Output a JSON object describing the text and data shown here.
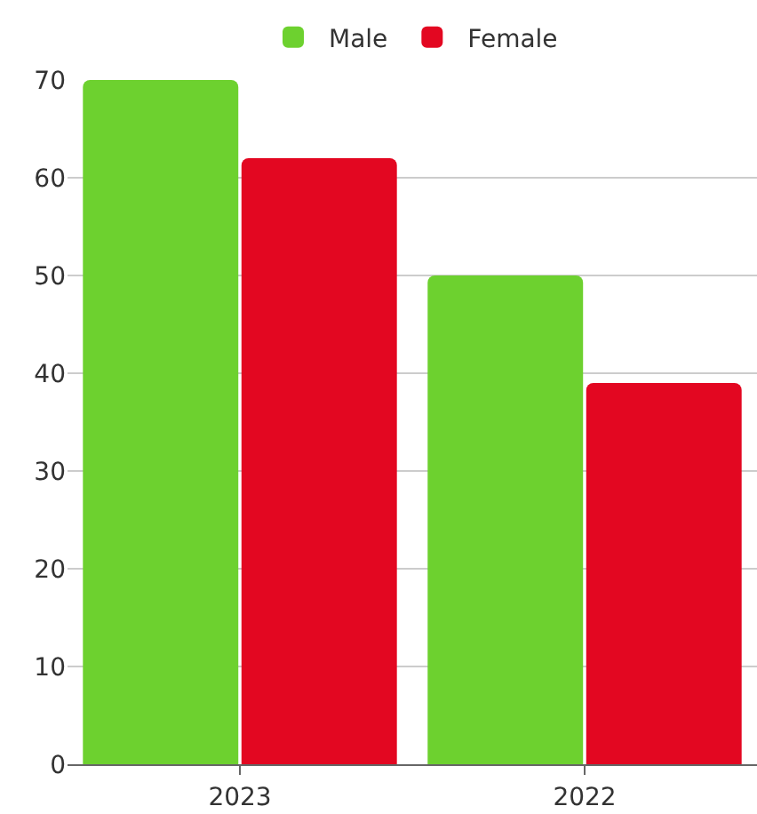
{
  "chart_data": {
    "type": "bar",
    "categories": [
      "2023",
      "2022"
    ],
    "series": [
      {
        "name": "Male",
        "color": "#6dd12f",
        "values": [
          70,
          50
        ]
      },
      {
        "name": "Female",
        "color": "#e30721",
        "values": [
          62,
          39
        ]
      }
    ],
    "ylim": [
      0,
      70
    ],
    "yticks": [
      0,
      10,
      20,
      30,
      40,
      50,
      60,
      70
    ],
    "grid": "y",
    "legend": "top"
  }
}
